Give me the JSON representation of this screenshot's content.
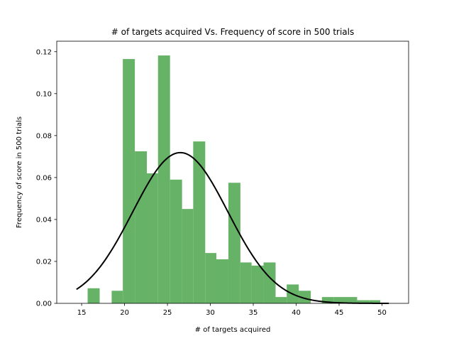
{
  "chart_data": {
    "type": "bar",
    "title": "# of targets acquired Vs. Frequency of score in 500 trials",
    "xlabel": "# of targets acquired",
    "ylabel": "Frequency of score in 500 trials",
    "xlim": [
      12.1,
      53.1
    ],
    "ylim": [
      0,
      0.125
    ],
    "xticks": [
      "15",
      "20",
      "25",
      "30",
      "35",
      "40",
      "45",
      "50"
    ],
    "yticks": [
      "0.00",
      "0.02",
      "0.04",
      "0.06",
      "0.08",
      "0.10",
      "0.12"
    ],
    "grid": false,
    "legend": "none",
    "bar_color": "#66b266",
    "curve_color": "#000000",
    "bins": [
      {
        "x0": 14.4,
        "x1": 15.7,
        "value": 0.0
      },
      {
        "x0": 15.7,
        "x1": 17.1,
        "value": 0.0072
      },
      {
        "x0": 17.1,
        "x1": 18.5,
        "value": 0.0
      },
      {
        "x0": 18.5,
        "x1": 19.8,
        "value": 0.006
      },
      {
        "x0": 19.8,
        "x1": 21.2,
        "value": 0.1165
      },
      {
        "x0": 21.2,
        "x1": 22.6,
        "value": 0.0725
      },
      {
        "x0": 22.6,
        "x1": 23.9,
        "value": 0.062
      },
      {
        "x0": 23.9,
        "x1": 25.3,
        "value": 0.1182
      },
      {
        "x0": 25.3,
        "x1": 26.7,
        "value": 0.059
      },
      {
        "x0": 26.7,
        "x1": 28.0,
        "value": 0.045
      },
      {
        "x0": 28.0,
        "x1": 29.4,
        "value": 0.0772
      },
      {
        "x0": 29.4,
        "x1": 30.7,
        "value": 0.024
      },
      {
        "x0": 30.7,
        "x1": 32.1,
        "value": 0.021
      },
      {
        "x0": 32.1,
        "x1": 33.5,
        "value": 0.0575
      },
      {
        "x0": 33.5,
        "x1": 34.8,
        "value": 0.0195
      },
      {
        "x0": 34.8,
        "x1": 36.2,
        "value": 0.018
      },
      {
        "x0": 36.2,
        "x1": 37.6,
        "value": 0.0195
      },
      {
        "x0": 37.6,
        "x1": 38.9,
        "value": 0.003
      },
      {
        "x0": 38.9,
        "x1": 40.3,
        "value": 0.009
      },
      {
        "x0": 40.3,
        "x1": 41.7,
        "value": 0.006
      },
      {
        "x0": 41.7,
        "x1": 43.0,
        "value": 0.0
      },
      {
        "x0": 43.0,
        "x1": 44.4,
        "value": 0.003
      },
      {
        "x0": 44.4,
        "x1": 45.7,
        "value": 0.003
      },
      {
        "x0": 45.7,
        "x1": 47.1,
        "value": 0.003
      },
      {
        "x0": 47.1,
        "x1": 48.5,
        "value": 0.0015
      },
      {
        "x0": 48.5,
        "x1": 49.8,
        "value": 0.0015
      },
      {
        "x0": 49.8,
        "x1": 51.2,
        "value": 0.0
      }
    ],
    "normal_curve": {
      "mean": 26.5,
      "std": 5.55,
      "x_range": [
        14.4,
        50.8
      ]
    }
  }
}
